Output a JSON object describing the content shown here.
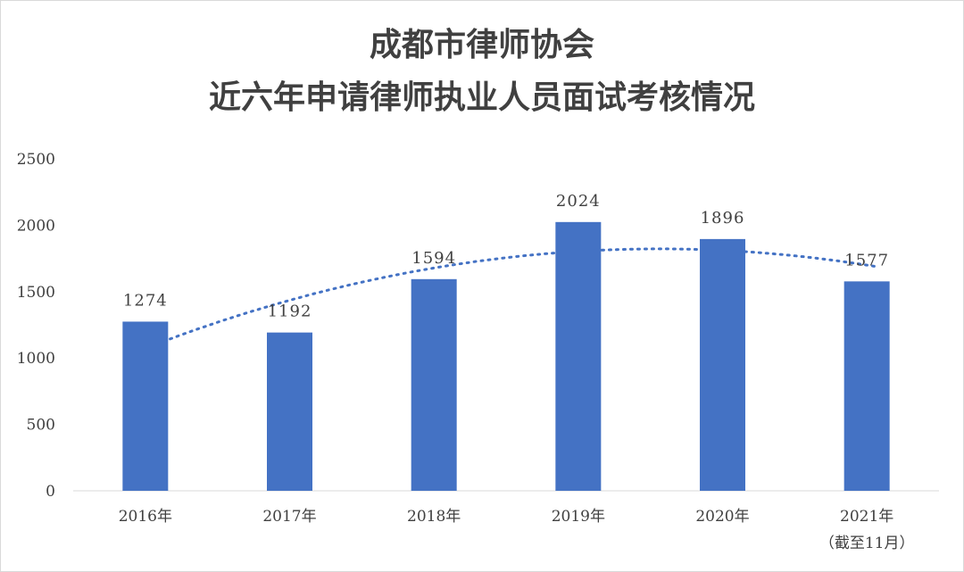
{
  "chart_data": {
    "type": "bar",
    "title": [
      "成都市律师协会",
      "近六年申请律师执业人员面试考核情况"
    ],
    "categories": [
      "2016年",
      "2017年",
      "2018年",
      "2019年",
      "2020年",
      "2021年"
    ],
    "category_sublabels": [
      "",
      "",
      "",
      "",
      "",
      "（截至11月）"
    ],
    "values": [
      1274,
      1192,
      1594,
      2024,
      1896,
      1577
    ],
    "data_labels": [
      "1274",
      "1192",
      "1594",
      "2024",
      "1896",
      "1577"
    ],
    "ylim": [
      0,
      2500
    ],
    "yticks": [
      0,
      500,
      1000,
      1500,
      2000,
      2500
    ],
    "xlabel": "",
    "ylabel": "",
    "grid": false,
    "legend": "none",
    "trendline": "polynomial, dotted",
    "colors": {
      "bar": "#4472C4",
      "trendline": "#4472C4",
      "axis": "#d9d9d9",
      "text": "#404040"
    }
  }
}
